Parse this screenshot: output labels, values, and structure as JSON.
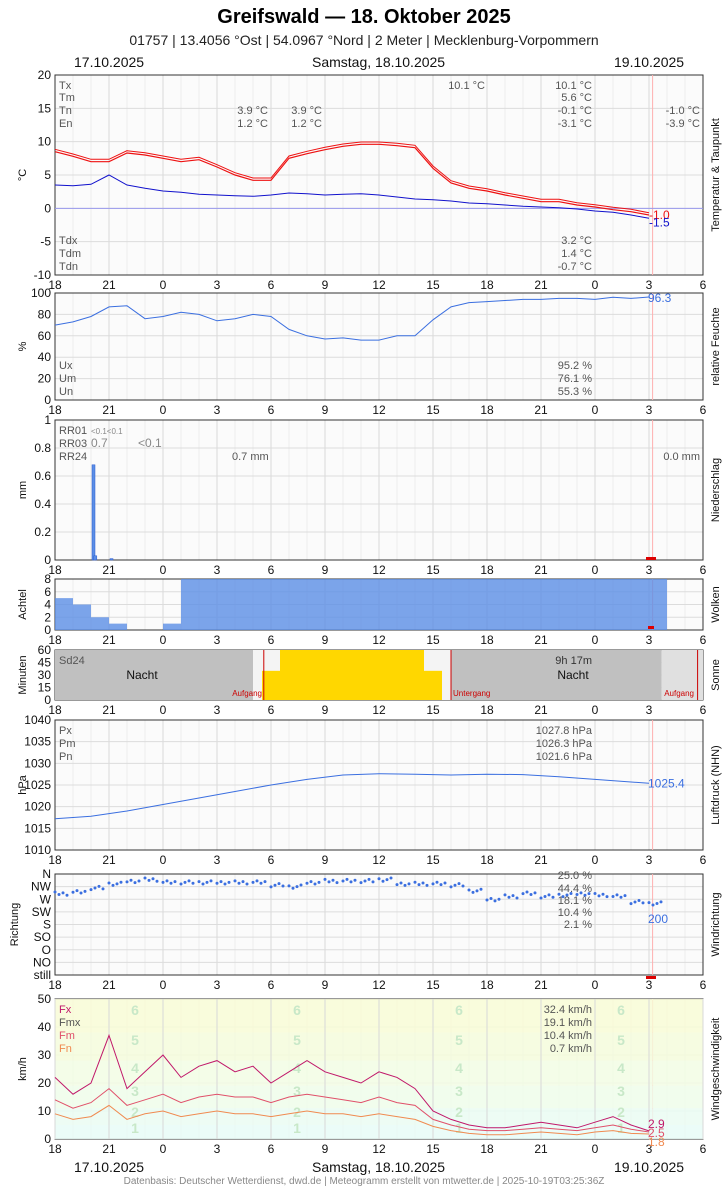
{
  "header": {
    "title": "Greifswald  —  18. Oktober 2025",
    "subtitle": "01757  |  13.4056 °Ost  |  54.0967 °Nord  |  2 Meter  |  Mecklenburg-Vorpommern",
    "date_left": "17.10.2025",
    "date_center": "Samstag, 18.10.2025",
    "date_right": "19.10.2025"
  },
  "footer": {
    "date_left": "17.10.2025",
    "date_center": "Samstag, 18.10.2025",
    "date_right": "19.10.2025",
    "source": "Datenbasis: Deutscher Wetterdienst, dwd.de | Meteogramm erstellt von mtwetter.de | 2025-10-19T03:25:36Z"
  },
  "x_tick_labels": [
    "18",
    "21",
    "0",
    "3",
    "6",
    "9",
    "12",
    "15",
    "18",
    "21",
    "0",
    "3",
    "6"
  ],
  "colors": {
    "temp": "#ee1111",
    "dew": "#1111cc",
    "line": "#3b6fe0",
    "bar": "#5b8ee6",
    "sun": "#ffd700",
    "night": "#c0c0c0",
    "wind_fx": "#c0186a",
    "wind_fm": "#e0506a",
    "wind_fn": "#f08a50",
    "sunline": "#cc0000"
  },
  "chart_data": [
    {
      "type": "line",
      "id": "temperature",
      "ylabel": "°C",
      "side_label": "Temperatur & Taupunkt",
      "yticks": [
        20,
        15,
        10,
        5,
        0,
        -5,
        -10
      ],
      "ylim": [
        -10,
        20
      ],
      "stats": [
        {
          "label": "Tx",
          "day1": "",
          "day2": "10.1 °C",
          "day3": "10.1 °C",
          "day4": ""
        },
        {
          "label": "Tm",
          "day1": "",
          "day2": "",
          "day3": "5.6 °C",
          "day4": ""
        },
        {
          "label": "Tn",
          "day1": "3.9 °C",
          "day2": "3.9 °C",
          "day3": "-0.1 °C",
          "day4": "-1.0 °C"
        },
        {
          "label": "En",
          "day1": "1.2 °C",
          "day2": "1.2 °C",
          "day3": "-3.1 °C",
          "day4": "-3.9 °C"
        }
      ],
      "stats_dew": [
        {
          "label": "Tdx",
          "value": "3.2 °C"
        },
        {
          "label": "Tdm",
          "value": "1.4 °C"
        },
        {
          "label": "Tdn",
          "value": "-0.7 °C"
        }
      ],
      "end_labels": {
        "temp": "-1.0",
        "dew": "-1.5"
      },
      "series": [
        {
          "name": "T",
          "x": [
            0,
            1,
            2,
            3,
            4,
            5,
            6,
            7,
            8,
            9,
            10,
            11,
            12,
            13,
            14,
            15,
            16,
            17,
            18,
            19,
            20,
            21,
            22,
            23,
            24,
            25,
            26,
            27,
            28,
            29,
            30,
            31,
            32,
            33
          ],
          "values": [
            8.5,
            7.8,
            7.0,
            7.0,
            8.3,
            8.0,
            7.5,
            7.0,
            7.3,
            6.2,
            5.0,
            4.2,
            4.2,
            7.5,
            8.2,
            8.8,
            9.3,
            9.6,
            9.6,
            9.4,
            9.1,
            6.0,
            3.8,
            3.0,
            2.6,
            2.0,
            1.5,
            1.0,
            1.0,
            0.5,
            0.2,
            -0.2,
            -0.5,
            -1.0
          ]
        },
        {
          "name": "Td",
          "x": [
            0,
            1,
            2,
            3,
            4,
            5,
            6,
            7,
            8,
            9,
            10,
            11,
            12,
            13,
            14,
            15,
            16,
            17,
            18,
            19,
            20,
            21,
            22,
            23,
            24,
            25,
            26,
            27,
            28,
            29,
            30,
            31,
            32,
            33
          ],
          "values": [
            3.5,
            3.4,
            3.6,
            5.0,
            3.5,
            3.0,
            2.6,
            2.4,
            2.1,
            2.0,
            1.9,
            1.8,
            2.0,
            2.3,
            2.2,
            2.0,
            2.1,
            2.2,
            2.0,
            1.7,
            1.4,
            1.3,
            1.1,
            0.8,
            0.7,
            0.5,
            0.3,
            0.2,
            0.1,
            -0.1,
            -0.4,
            -0.6,
            -1.0,
            -1.5
          ]
        }
      ]
    },
    {
      "type": "line",
      "id": "humidity",
      "ylabel": "%",
      "side_label": "relative Feuchte",
      "yticks": [
        100,
        80,
        60,
        40,
        20,
        0
      ],
      "ylim": [
        0,
        100
      ],
      "stats": [
        {
          "label": "Ux",
          "value": "95.2 %"
        },
        {
          "label": "Um",
          "value": "76.1 %"
        },
        {
          "label": "Un",
          "value": "55.3 %"
        }
      ],
      "end_label": "96.3",
      "series": [
        {
          "name": "U",
          "x": [
            0,
            1,
            2,
            3,
            4,
            5,
            6,
            7,
            8,
            9,
            10,
            11,
            12,
            13,
            14,
            15,
            16,
            17,
            18,
            19,
            20,
            21,
            22,
            23,
            24,
            25,
            26,
            27,
            28,
            29,
            30,
            31,
            32,
            33
          ],
          "values": [
            70,
            73,
            78,
            87,
            88,
            76,
            78,
            82,
            80,
            74,
            76,
            80,
            78,
            66,
            60,
            57,
            58,
            56,
            56,
            60,
            60,
            75,
            87,
            91,
            92,
            93,
            94,
            94,
            95,
            95,
            94,
            96,
            95,
            96.3
          ]
        }
      ]
    },
    {
      "type": "bar",
      "id": "precipitation",
      "ylabel": "mm",
      "side_label": "Niederschlag",
      "yticks": [
        1.0,
        0.8,
        0.6,
        0.4,
        0.2,
        0.0
      ],
      "ylim": [
        0,
        1
      ],
      "rows": [
        {
          "label": "RR01",
          "text": "<0.1<0.1"
        },
        {
          "label": "RR03",
          "text": "0.7"
        },
        {
          "label": "RR24",
          "text": ""
        }
      ],
      "rr03_second": "<0.1",
      "day_totals": [
        "0.7 mm",
        "0.0 mm"
      ],
      "x": [
        2.0,
        2.1,
        3.0
      ],
      "values": [
        0.68,
        0.03,
        0.01
      ]
    },
    {
      "type": "bar",
      "id": "clouds",
      "ylabel": "Achtel",
      "side_label": "Wolken",
      "yticks": [
        8,
        6,
        4,
        2,
        0
      ],
      "ylim": [
        0,
        8
      ],
      "x": [
        0,
        1,
        2,
        3,
        4,
        5,
        6,
        7,
        8,
        9,
        10,
        11,
        12,
        13,
        14,
        15,
        16,
        17,
        18,
        19,
        20,
        21,
        22,
        23,
        24,
        25,
        26,
        27,
        28,
        29,
        30,
        31,
        32,
        33
      ],
      "values": [
        5,
        4,
        2,
        1,
        0,
        0,
        1,
        8,
        8,
        8,
        8,
        8,
        8,
        8,
        8,
        8,
        8,
        8,
        8,
        8,
        8,
        8,
        8,
        8,
        8,
        8,
        8,
        8,
        8,
        8,
        8,
        8,
        8,
        8
      ]
    },
    {
      "type": "bar",
      "id": "sunshine",
      "ylabel": "Minuten",
      "side_label": "Sonne",
      "yticks": [
        60,
        45,
        30,
        15,
        0
      ],
      "ylim": [
        0,
        60
      ],
      "sd24": "Sd24",
      "sun_total": "9h 17m",
      "night_labels": [
        "Nacht",
        "Nacht"
      ],
      "sunrise_label": "Aufgang",
      "sunset_label": "Untergang",
      "x": [
        12,
        13,
        14,
        15,
        16,
        17,
        18,
        19,
        20,
        21
      ],
      "values": [
        35,
        60,
        60,
        60,
        60,
        60,
        60,
        60,
        60,
        35
      ]
    },
    {
      "type": "line",
      "id": "pressure",
      "ylabel": "hPa",
      "side_label": "Luftdruck (NHN)",
      "yticks": [
        1040,
        1035,
        1030,
        1025,
        1020,
        1015,
        1010
      ],
      "ylim": [
        1010,
        1040
      ],
      "stats": [
        {
          "label": "Px",
          "value": "1027.8 hPa"
        },
        {
          "label": "Pm",
          "value": "1026.3 hPa"
        },
        {
          "label": "Pn",
          "value": "1021.6 hPa"
        }
      ],
      "end_label": "1025.4",
      "series": [
        {
          "name": "P",
          "x": [
            0,
            2,
            4,
            6,
            8,
            10,
            12,
            14,
            16,
            18,
            20,
            22,
            24,
            26,
            28,
            30,
            32,
            33
          ],
          "values": [
            1017.2,
            1017.8,
            1019.0,
            1020.5,
            1022.0,
            1023.5,
            1025.0,
            1026.3,
            1027.3,
            1027.6,
            1027.5,
            1027.3,
            1027.5,
            1027.4,
            1026.9,
            1026.3,
            1025.7,
            1025.4
          ]
        }
      ]
    },
    {
      "type": "scatter",
      "id": "winddirection",
      "side_label": "Windrichtung",
      "categories": [
        "N",
        "NW",
        "W",
        "SW",
        "S",
        "SO",
        "O",
        "NO",
        "still"
      ],
      "stats": [
        "25.0 %",
        "44.4 %",
        "18.1 %",
        "10.4 %",
        "2.1 %"
      ],
      "end_label": "200",
      "x": [
        0,
        1,
        2,
        3,
        4,
        5,
        6,
        7,
        8,
        9,
        10,
        11,
        12,
        13,
        14,
        15,
        16,
        17,
        18,
        19,
        20,
        21,
        22,
        23,
        24,
        25,
        26,
        27,
        28,
        29,
        30,
        31,
        32,
        33
      ],
      "values": [
        290,
        295,
        310,
        325,
        335,
        340,
        330,
        330,
        330,
        330,
        330,
        330,
        320,
        315,
        330,
        335,
        335,
        335,
        340,
        325,
        325,
        325,
        320,
        300,
        270,
        280,
        290,
        280,
        285,
        290,
        285,
        280,
        260,
        255
      ]
    },
    {
      "type": "line",
      "id": "windspeed",
      "ylabel": "km/h",
      "side_label": "Windgeschwindigkeit",
      "yticks": [
        50,
        40,
        30,
        20,
        10,
        0
      ],
      "ylim": [
        0,
        50
      ],
      "beaufort": [
        "6",
        "5",
        "4",
        "3",
        "2",
        "1"
      ],
      "stats": [
        {
          "label": "Fx",
          "value": "32.4 km/h"
        },
        {
          "label": "Fmx",
          "value": "19.1 km/h"
        },
        {
          "label": "Fm",
          "value": "10.4 km/h"
        },
        {
          "label": "Fn",
          "value": "0.7 km/h"
        }
      ],
      "end_labels": {
        "fx": "2.9",
        "fm": "2.5",
        "fn": "1.8"
      },
      "series": [
        {
          "name": "Fx",
          "x": [
            0,
            1,
            2,
            3,
            4,
            5,
            6,
            7,
            8,
            9,
            10,
            11,
            12,
            13,
            14,
            15,
            16,
            17,
            18,
            19,
            20,
            21,
            22,
            23,
            24,
            25,
            26,
            27,
            28,
            29,
            30,
            31,
            32,
            33
          ],
          "values": [
            22,
            16,
            20,
            37,
            18,
            24,
            30,
            22,
            26,
            28,
            24,
            26,
            20,
            24,
            28,
            24,
            22,
            20,
            24,
            22,
            18,
            10,
            7,
            5,
            4,
            4,
            5,
            6,
            5,
            4,
            6,
            8,
            5,
            2.9
          ]
        },
        {
          "name": "Fm",
          "x": [
            0,
            1,
            2,
            3,
            4,
            5,
            6,
            7,
            8,
            9,
            10,
            11,
            12,
            13,
            14,
            15,
            16,
            17,
            18,
            19,
            20,
            21,
            22,
            23,
            24,
            25,
            26,
            27,
            28,
            29,
            30,
            31,
            32,
            33
          ],
          "values": [
            14,
            11,
            13,
            18,
            12,
            14,
            16,
            13,
            15,
            16,
            15,
            15,
            13,
            15,
            16,
            15,
            14,
            13,
            15,
            13,
            12,
            7,
            5,
            3.5,
            3,
            3,
            3.5,
            4,
            3.5,
            3,
            4,
            5,
            3.5,
            2.5
          ]
        },
        {
          "name": "Fn",
          "x": [
            0,
            1,
            2,
            3,
            4,
            5,
            6,
            7,
            8,
            9,
            10,
            11,
            12,
            13,
            14,
            15,
            16,
            17,
            18,
            19,
            20,
            21,
            22,
            23,
            24,
            25,
            26,
            27,
            28,
            29,
            30,
            31,
            32,
            33
          ],
          "values": [
            9,
            7,
            8,
            12,
            7,
            9,
            10,
            8,
            9,
            10,
            9,
            9,
            8,
            9,
            10,
            9,
            9,
            8,
            9,
            8,
            7,
            4.5,
            3,
            2,
            1.5,
            1.5,
            2,
            2.5,
            2,
            1.5,
            2.5,
            3,
            2,
            1.8
          ]
        }
      ]
    }
  ]
}
